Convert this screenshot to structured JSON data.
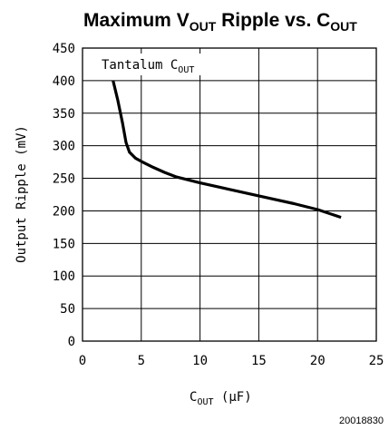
{
  "title": {
    "main": "Maximum V",
    "sub1": "OUT",
    "mid": " Ripple vs. C",
    "sub2": "OUT"
  },
  "figure_id": "20018830",
  "chart_data": {
    "type": "line",
    "title": "Maximum VOUT Ripple vs. COUT",
    "xlabel": {
      "main": "C",
      "sub": "OUT",
      "unit": " (μF)"
    },
    "ylabel": "Output Ripple (mV)",
    "xlim": [
      0,
      25
    ],
    "ylim": [
      0,
      450
    ],
    "x_ticks": [
      0,
      5,
      10,
      15,
      20,
      25
    ],
    "y_ticks": [
      0,
      50,
      100,
      150,
      200,
      250,
      300,
      350,
      400,
      450
    ],
    "grid": true,
    "annotation": {
      "main": "Tantalum C",
      "sub": "OUT"
    },
    "series": [
      {
        "x": [
          2.6,
          3.0,
          3.4,
          3.7,
          4.0,
          4.5,
          5.0,
          6.0,
          7.0,
          8.0,
          10.0,
          12.0,
          14.0,
          16.0,
          18.0,
          20.0,
          22.0
        ],
        "y": [
          400,
          370,
          335,
          305,
          290,
          281,
          276,
          267,
          259,
          252,
          243,
          235,
          227,
          219,
          211,
          202,
          190
        ]
      }
    ]
  }
}
